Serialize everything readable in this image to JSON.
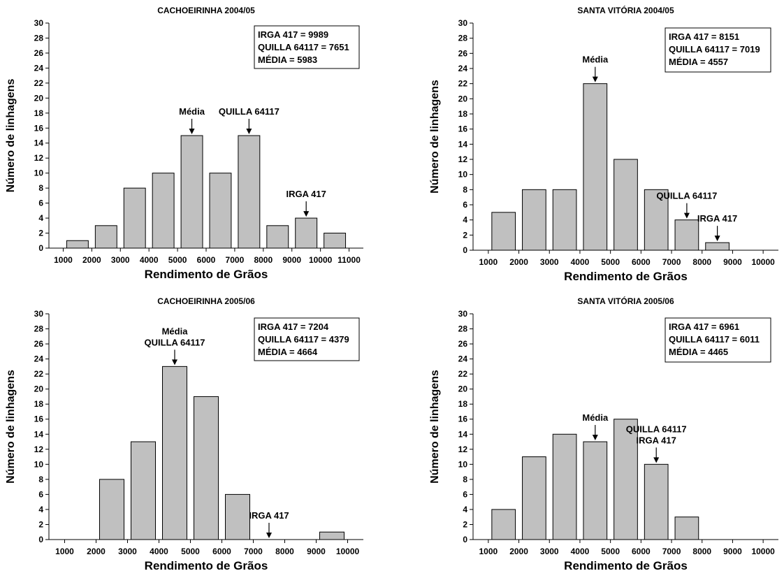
{
  "figure": {
    "bar_color": "#c0c0c0",
    "axis_color": "#000000",
    "panels_layout": "2x2"
  },
  "chart_data": [
    {
      "type": "bar",
      "title": "CACHOEIRINHA 2004/05",
      "xlabel": "Rendimento de Grãos",
      "ylabel": "Número de linhagens",
      "ylim": [
        0,
        30
      ],
      "yticks": [
        "0",
        "2",
        "4",
        "6",
        "8",
        "10",
        "12",
        "14",
        "16",
        "18",
        "20",
        "22",
        "24",
        "26",
        "28",
        "30"
      ],
      "xlim": [
        500,
        11500
      ],
      "xticks": [
        "1000",
        "2000",
        "3000",
        "4000",
        "5000",
        "6000",
        "7000",
        "8000",
        "9000",
        "10000",
        "11000"
      ],
      "bins": [
        {
          "start": 1000,
          "end": 2000,
          "count": 1
        },
        {
          "start": 2000,
          "end": 3000,
          "count": 3
        },
        {
          "start": 3000,
          "end": 4000,
          "count": 8
        },
        {
          "start": 4000,
          "end": 5000,
          "count": 10
        },
        {
          "start": 5000,
          "end": 6000,
          "count": 15
        },
        {
          "start": 6000,
          "end": 7000,
          "count": 10
        },
        {
          "start": 7000,
          "end": 8000,
          "count": 15
        },
        {
          "start": 8000,
          "end": 9000,
          "count": 3
        },
        {
          "start": 9000,
          "end": 10000,
          "count": 4
        },
        {
          "start": 10000,
          "end": 11000,
          "count": 2
        }
      ],
      "legend": [
        "IRGA 417 = 9989",
        "QUILLA 64117 = 7651",
        "MÉDIA = 5983"
      ],
      "legend_position": "top-right",
      "annotations": [
        {
          "lines": [
            "Média"
          ],
          "x": 5500,
          "y": 15
        },
        {
          "lines": [
            "QUILLA 64117"
          ],
          "x": 7500,
          "y": 15
        },
        {
          "lines": [
            "IRGA 417"
          ],
          "x": 9500,
          "y": 4
        }
      ]
    },
    {
      "type": "bar",
      "title": "SANTA VITÓRIA 2004/05",
      "xlabel": "Rendimento de Grãos",
      "ylabel": "Número de linhagens",
      "ylim": [
        0,
        30
      ],
      "yticks": [
        "0",
        "2",
        "4",
        "6",
        "8",
        "10",
        "12",
        "14",
        "16",
        "18",
        "20",
        "22",
        "24",
        "26",
        "28",
        "30"
      ],
      "xlim": [
        500,
        10500
      ],
      "xticks": [
        "1000",
        "2000",
        "3000",
        "4000",
        "5000",
        "6000",
        "7000",
        "8000",
        "9000",
        "10000"
      ],
      "bins": [
        {
          "start": 1000,
          "end": 2000,
          "count": 5
        },
        {
          "start": 2000,
          "end": 3000,
          "count": 8
        },
        {
          "start": 3000,
          "end": 4000,
          "count": 8
        },
        {
          "start": 4000,
          "end": 5000,
          "count": 22
        },
        {
          "start": 5000,
          "end": 6000,
          "count": 12
        },
        {
          "start": 6000,
          "end": 7000,
          "count": 8
        },
        {
          "start": 7000,
          "end": 8000,
          "count": 4
        },
        {
          "start": 8000,
          "end": 9000,
          "count": 1
        }
      ],
      "legend": [
        "IRGA 417 = 8151",
        "QUILLA 64117 = 7019",
        "MÉDIA = 4557"
      ],
      "legend_position": "top-right",
      "annotations": [
        {
          "lines": [
            "Média"
          ],
          "x": 4500,
          "y": 22
        },
        {
          "lines": [
            "QUILLA 64117"
          ],
          "x": 7500,
          "y": 4
        },
        {
          "lines": [
            "IRGA 417"
          ],
          "x": 8500,
          "y": 1
        }
      ]
    },
    {
      "type": "bar",
      "title": "CACHOEIRINHA  2005/06",
      "xlabel": "Rendimento de Grãos",
      "ylabel": "Número de linhagens",
      "ylim": [
        0,
        30
      ],
      "yticks": [
        "0",
        "2",
        "4",
        "6",
        "8",
        "10",
        "12",
        "14",
        "16",
        "18",
        "20",
        "22",
        "24",
        "26",
        "28",
        "30"
      ],
      "xlim": [
        500,
        10500
      ],
      "xticks": [
        "1000",
        "2000",
        "3000",
        "4000",
        "5000",
        "6000",
        "7000",
        "8000",
        "9000",
        "10000"
      ],
      "bins": [
        {
          "start": 2000,
          "end": 3000,
          "count": 8
        },
        {
          "start": 3000,
          "end": 4000,
          "count": 13
        },
        {
          "start": 4000,
          "end": 5000,
          "count": 23
        },
        {
          "start": 5000,
          "end": 6000,
          "count": 19
        },
        {
          "start": 6000,
          "end": 7000,
          "count": 6
        },
        {
          "start": 9000,
          "end": 10000,
          "count": 1
        }
      ],
      "legend": [
        "IRGA 417 = 7204",
        "QUILLA 64117 = 4379",
        "MÉDIA = 4664"
      ],
      "legend_position": "top-right",
      "annotations": [
        {
          "lines": [
            "Média",
            "QUILLA 64117"
          ],
          "x": 4500,
          "y": 23
        },
        {
          "lines": [
            "IRGA 417"
          ],
          "x": 7500,
          "y": 0
        }
      ]
    },
    {
      "type": "bar",
      "title": "SANTA VITÓRIA 2005/06",
      "xlabel": "Rendimento de Grãos",
      "ylabel": "Número de linhagens",
      "ylim": [
        0,
        30
      ],
      "yticks": [
        "0",
        "2",
        "4",
        "6",
        "8",
        "10",
        "12",
        "14",
        "16",
        "18",
        "20",
        "22",
        "24",
        "26",
        "28",
        "30"
      ],
      "xlim": [
        500,
        10500
      ],
      "xticks": [
        "1000",
        "2000",
        "3000",
        "4000",
        "5000",
        "6000",
        "7000",
        "8000",
        "9000",
        "10000"
      ],
      "bins": [
        {
          "start": 1000,
          "end": 2000,
          "count": 4
        },
        {
          "start": 2000,
          "end": 3000,
          "count": 11
        },
        {
          "start": 3000,
          "end": 4000,
          "count": 14
        },
        {
          "start": 4000,
          "end": 5000,
          "count": 13
        },
        {
          "start": 5000,
          "end": 6000,
          "count": 16
        },
        {
          "start": 6000,
          "end": 7000,
          "count": 10
        },
        {
          "start": 7000,
          "end": 8000,
          "count": 3
        }
      ],
      "legend": [
        "IRGA 417 = 6961",
        "QUILLA 64117 = 6011",
        "MÉDIA = 4465"
      ],
      "legend_position": "top-right",
      "annotations": [
        {
          "lines": [
            "Média"
          ],
          "x": 4500,
          "y": 13
        },
        {
          "lines": [
            "QUILLA 64117",
            "IRGA 417"
          ],
          "x": 6500,
          "y": 10
        }
      ]
    }
  ]
}
